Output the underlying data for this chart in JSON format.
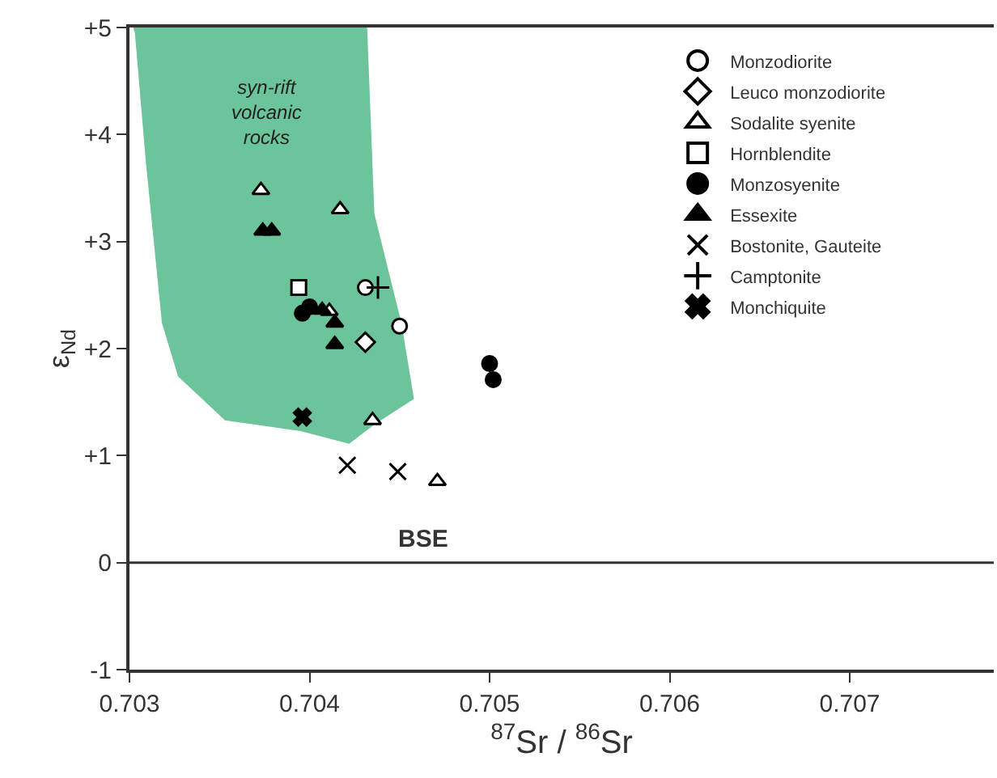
{
  "chart_data": {
    "type": "scatter",
    "xlabel": "$^{87}$Sr / $^{86}$Sr",
    "ylabel": "ε$_{Nd}$",
    "xlim": [
      0.703,
      0.7078
    ],
    "xticks": [
      0.703,
      0.704,
      0.705,
      0.706,
      0.707
    ],
    "ylim": [
      -1,
      5
    ],
    "yticks": [
      {
        "value": 5,
        "label": "+5"
      },
      {
        "value": 4,
        "label": "+4"
      },
      {
        "value": 3,
        "label": "+3"
      },
      {
        "value": 2,
        "label": "+2"
      },
      {
        "value": 1,
        "label": "+1"
      },
      0,
      -1
    ],
    "legend": "top right",
    "ref_lines": [
      {
        "axis": "y",
        "value": 0,
        "label": "BSE",
        "color": "#333333"
      }
    ],
    "annotations": [
      "syn-rift\nvolcanic\nrocks"
    ],
    "series": [
      {
        "type": "area",
        "color": "#6cc49a",
        "x": [
          0.70302,
          0.70432,
          0.70436,
          0.70451,
          0.70458,
          0.70436,
          0.70422,
          0.70395,
          0.70353,
          0.70327,
          0.70318,
          0.70309,
          0.70303,
          0.70302
        ],
        "values": [
          5,
          5,
          3.26,
          2.24,
          1.53,
          1.29,
          1.11,
          1.23,
          1.33,
          1.74,
          2.24,
          3.76,
          4.95,
          5
        ]
      },
      {
        "name": "Monzodiorite",
        "marker": "circle",
        "color": "#ffffff",
        "x": [
          0.70431,
          0.7045
        ],
        "values": [
          2.57,
          2.21
        ]
      },
      {
        "name": "Leuco monzodiorite",
        "marker": "diamond",
        "color": "#ffffff",
        "x": [
          0.70431
        ],
        "values": [
          2.06
        ]
      },
      {
        "name": "Sodalite syenite",
        "marker": "triangle",
        "color": "#ffffff",
        "x": [
          0.70373,
          0.70417,
          0.70411,
          0.70435,
          0.70471
        ],
        "values": [
          3.48,
          3.3,
          2.35,
          1.33,
          0.76
        ]
      },
      {
        "name": "Hornblendite",
        "marker": "square",
        "color": "#ffffff",
        "x": [
          0.70394
        ],
        "values": [
          2.57
        ]
      },
      {
        "name": "Monzosyenite",
        "marker": "circle",
        "color": "#000000",
        "x": [
          0.704,
          0.70396,
          0.705,
          0.70502
        ],
        "values": [
          2.39,
          2.33,
          1.86,
          1.71
        ]
      },
      {
        "name": "Essexite",
        "marker": "triangle",
        "color": "#000000",
        "x": [
          0.70374,
          0.70379,
          0.70407,
          0.70414,
          0.70414
        ],
        "values": [
          3.1,
          3.1,
          2.36,
          2.24,
          2.04
        ]
      },
      {
        "name": "Bostonite, Gauteite",
        "marker": "x",
        "color": "#000000",
        "x": [
          0.70421,
          0.70449
        ],
        "values": [
          0.91,
          0.85
        ]
      },
      {
        "name": "Camptonite",
        "marker": "plus",
        "color": "#000000",
        "x": [
          0.70438
        ],
        "values": [
          2.57
        ]
      },
      {
        "name": "Monchiquite",
        "marker": "cross",
        "color": "#000000",
        "x": [
          0.70396
        ],
        "values": [
          1.36
        ]
      }
    ]
  }
}
